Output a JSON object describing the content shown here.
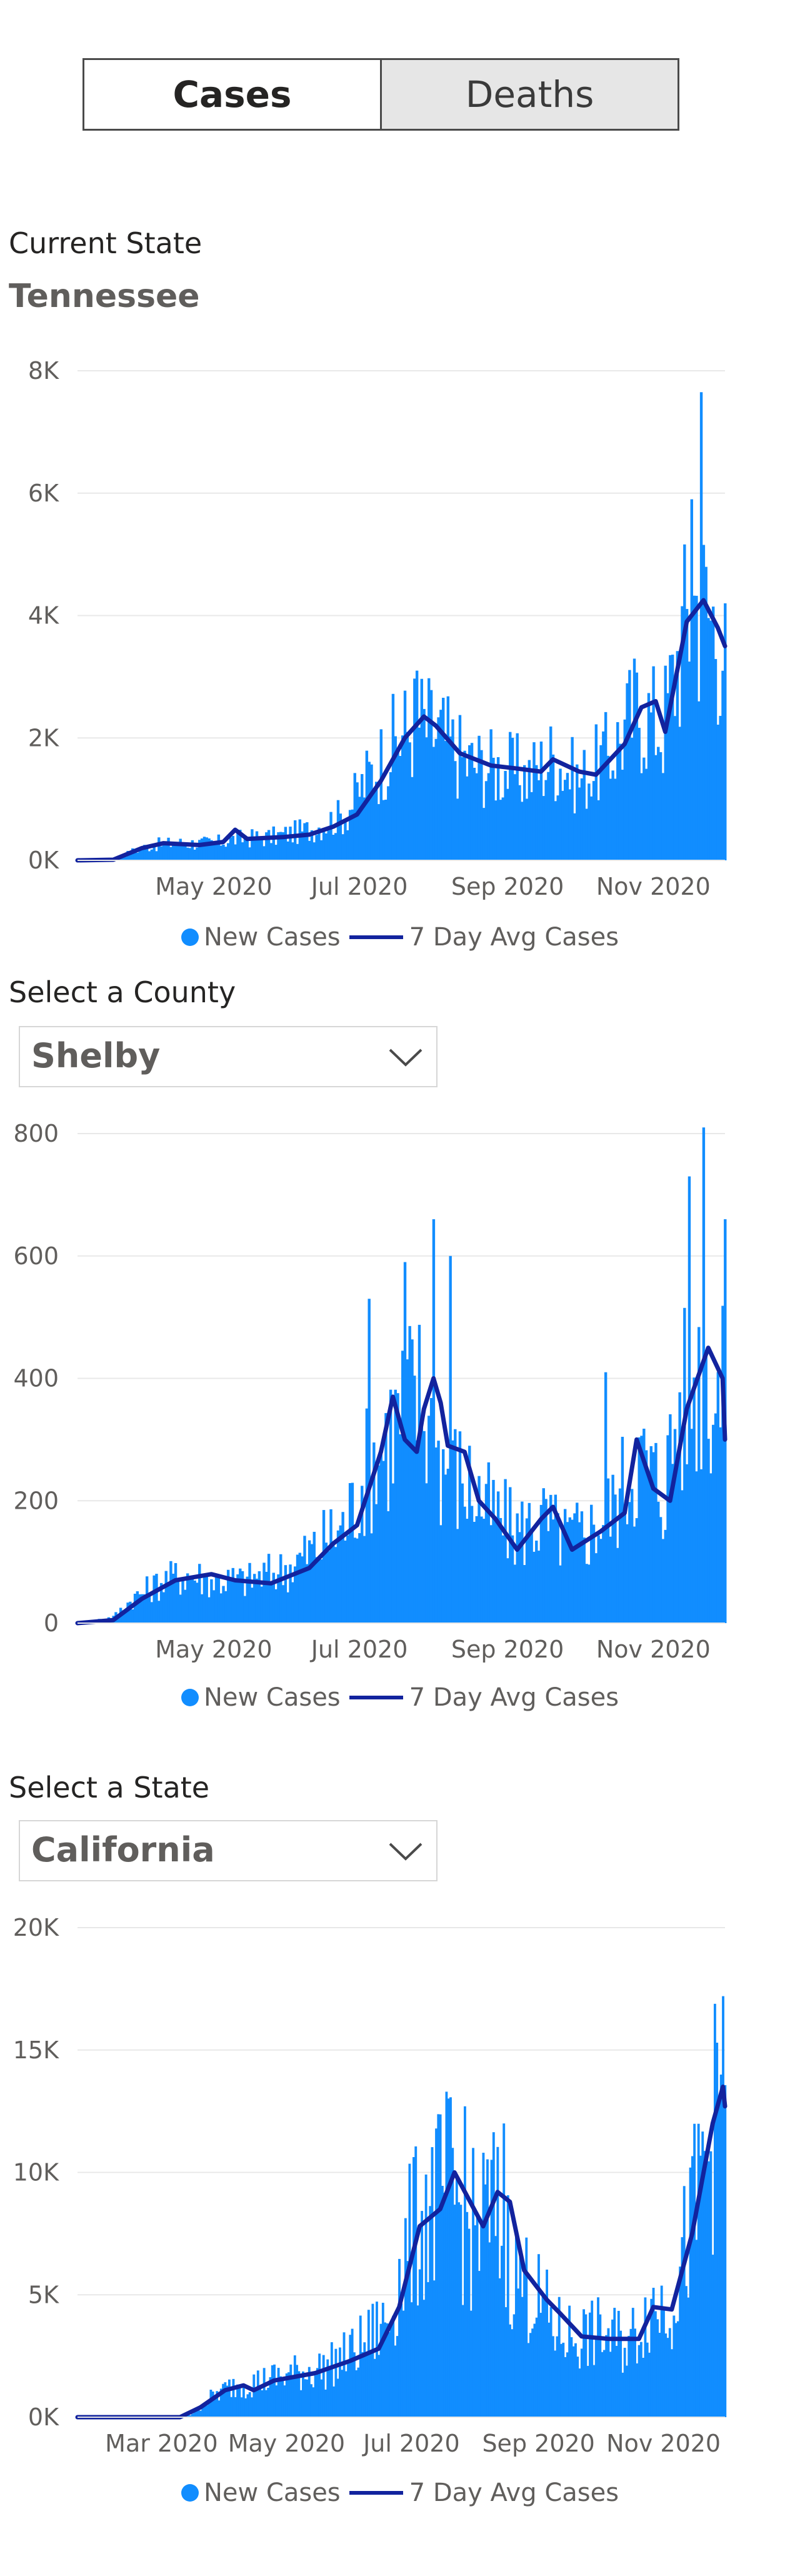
{
  "tabs": {
    "cases": "Cases",
    "deaths": "Deaths"
  },
  "section1": {
    "heading": "Current State",
    "state": "Tennessee"
  },
  "section2": {
    "heading": "Select a County",
    "selected": "Shelby"
  },
  "section3": {
    "heading": "Select a State",
    "selected": "California"
  },
  "legend": {
    "bars": "New Cases",
    "line": "7 Day Avg Cases"
  },
  "colors": {
    "bars": "#118dff",
    "line": "#12239e",
    "grid": "#e8e8e8",
    "tick": "#605e5c"
  },
  "chart_data": [
    {
      "type": "bar",
      "title": "Tennessee",
      "x_range": [
        "2020-03-05",
        "2020-12-01"
      ],
      "x_ticks": [
        "May 2020",
        "Jul 2020",
        "Sep 2020",
        "Nov 2020"
      ],
      "y_ticks": [
        "0K",
        "2K",
        "4K",
        "6K",
        "8K"
      ],
      "ylim": [
        0,
        8000
      ],
      "grid": true,
      "legend_position": "bottom",
      "series": [
        {
          "name": "New Cases",
          "kind": "bar",
          "points": [
            [
              "2020-03-05",
              0
            ],
            [
              "2020-03-20",
              10
            ],
            [
              "2020-03-28",
              150
            ],
            [
              "2020-04-05",
              250
            ],
            [
              "2020-04-15",
              280
            ],
            [
              "2020-05-01",
              280
            ],
            [
              "2020-05-10",
              350
            ],
            [
              "2020-05-25",
              380
            ],
            [
              "2020-06-10",
              500
            ],
            [
              "2020-06-25",
              750
            ],
            [
              "2020-07-05",
              1400
            ],
            [
              "2020-07-15",
              1900
            ],
            [
              "2020-07-25",
              2300
            ],
            [
              "2020-08-05",
              2000
            ],
            [
              "2020-08-15",
              1600
            ],
            [
              "2020-08-30",
              1500
            ],
            [
              "2020-09-10",
              1400
            ],
            [
              "2020-09-20",
              1700
            ],
            [
              "2020-10-01",
              1300
            ],
            [
              "2020-10-15",
              1800
            ],
            [
              "2020-10-25",
              2500
            ],
            [
              "2020-11-05",
              2200
            ],
            [
              "2020-11-12",
              3500
            ],
            [
              "2020-11-18",
              4300
            ],
            [
              "2020-11-25",
              4000
            ],
            [
              "2020-12-01",
              3600
            ]
          ],
          "peaks": [
            [
              "2020-11-21",
              7650
            ],
            [
              "2020-11-17",
              5900
            ],
            [
              "2020-12-01",
              4200
            ],
            [
              "2020-07-25",
              3100
            ]
          ]
        },
        {
          "name": "7 Day Avg Cases",
          "kind": "line",
          "points": [
            [
              "2020-03-05",
              0
            ],
            [
              "2020-03-20",
              10
            ],
            [
              "2020-04-01",
              200
            ],
            [
              "2020-04-10",
              280
            ],
            [
              "2020-04-25",
              250
            ],
            [
              "2020-05-05",
              300
            ],
            [
              "2020-05-10",
              500
            ],
            [
              "2020-05-15",
              350
            ],
            [
              "2020-05-30",
              380
            ],
            [
              "2020-06-10",
              420
            ],
            [
              "2020-06-20",
              550
            ],
            [
              "2020-06-30",
              750
            ],
            [
              "2020-07-10",
              1300
            ],
            [
              "2020-07-20",
              2000
            ],
            [
              "2020-07-28",
              2350
            ],
            [
              "2020-08-02",
              2200
            ],
            [
              "2020-08-12",
              1750
            ],
            [
              "2020-08-25",
              1550
            ],
            [
              "2020-09-05",
              1500
            ],
            [
              "2020-09-15",
              1450
            ],
            [
              "2020-09-20",
              1650
            ],
            [
              "2020-10-01",
              1450
            ],
            [
              "2020-10-08",
              1400
            ],
            [
              "2020-10-20",
              1900
            ],
            [
              "2020-10-27",
              2500
            ],
            [
              "2020-11-02",
              2600
            ],
            [
              "2020-11-06",
              2100
            ],
            [
              "2020-11-15",
              3900
            ],
            [
              "2020-11-22",
              4250
            ],
            [
              "2020-11-28",
              3800
            ],
            [
              "2020-12-01",
              3500
            ]
          ]
        }
      ]
    },
    {
      "type": "bar",
      "title": "Shelby",
      "x_range": [
        "2020-03-05",
        "2020-12-01"
      ],
      "x_ticks": [
        "May 2020",
        "Jul 2020",
        "Sep 2020",
        "Nov 2020"
      ],
      "y_ticks": [
        "0",
        "200",
        "400",
        "600",
        "800"
      ],
      "ylim": [
        0,
        800
      ],
      "grid": true,
      "legend_position": "bottom",
      "series": [
        {
          "name": "New Cases",
          "kind": "bar",
          "points": [
            [
              "2020-03-05",
              0
            ],
            [
              "2020-03-20",
              10
            ],
            [
              "2020-03-28",
              40
            ],
            [
              "2020-04-10",
              70
            ],
            [
              "2020-04-20",
              80
            ],
            [
              "2020-05-01",
              70
            ],
            [
              "2020-05-15",
              70
            ],
            [
              "2020-06-01",
              90
            ],
            [
              "2020-06-15",
              130
            ],
            [
              "2020-06-25",
              160
            ],
            [
              "2020-07-05",
              260
            ],
            [
              "2020-07-15",
              320
            ],
            [
              "2020-07-25",
              380
            ],
            [
              "2020-08-05",
              260
            ],
            [
              "2020-08-15",
              230
            ],
            [
              "2020-08-25",
              180
            ],
            [
              "2020-09-05",
              150
            ],
            [
              "2020-09-15",
              170
            ],
            [
              "2020-09-25",
              140
            ],
            [
              "2020-10-05",
              150
            ],
            [
              "2020-10-15",
              190
            ],
            [
              "2020-10-25",
              270
            ],
            [
              "2020-11-05",
              220
            ],
            [
              "2020-11-12",
              350
            ],
            [
              "2020-11-22",
              430
            ],
            [
              "2020-12-01",
              350
            ]
          ],
          "peaks": [
            [
              "2020-11-22",
              810
            ],
            [
              "2020-11-16",
              730
            ],
            [
              "2020-12-01",
              660
            ],
            [
              "2020-08-01",
              660
            ],
            [
              "2020-08-08",
              600
            ],
            [
              "2020-07-20",
              590
            ],
            [
              "2020-07-05",
              530
            ],
            [
              "2020-10-12",
              410
            ]
          ]
        },
        {
          "name": "7 Day Avg Cases",
          "kind": "line",
          "points": [
            [
              "2020-03-05",
              0
            ],
            [
              "2020-03-20",
              5
            ],
            [
              "2020-04-01",
              40
            ],
            [
              "2020-04-15",
              70
            ],
            [
              "2020-04-30",
              80
            ],
            [
              "2020-05-10",
              70
            ],
            [
              "2020-05-25",
              65
            ],
            [
              "2020-06-10",
              90
            ],
            [
              "2020-06-20",
              130
            ],
            [
              "2020-06-30",
              160
            ],
            [
              "2020-07-10",
              280
            ],
            [
              "2020-07-15",
              370
            ],
            [
              "2020-07-20",
              300
            ],
            [
              "2020-07-25",
              280
            ],
            [
              "2020-07-28",
              350
            ],
            [
              "2020-08-01",
              400
            ],
            [
              "2020-08-04",
              360
            ],
            [
              "2020-08-07",
              290
            ],
            [
              "2020-08-14",
              280
            ],
            [
              "2020-08-20",
              200
            ],
            [
              "2020-08-27",
              170
            ],
            [
              "2020-09-05",
              120
            ],
            [
              "2020-09-15",
              170
            ],
            [
              "2020-09-20",
              190
            ],
            [
              "2020-09-28",
              120
            ],
            [
              "2020-10-10",
              150
            ],
            [
              "2020-10-20",
              180
            ],
            [
              "2020-10-25",
              300
            ],
            [
              "2020-11-01",
              220
            ],
            [
              "2020-11-08",
              200
            ],
            [
              "2020-11-15",
              350
            ],
            [
              "2020-11-24",
              450
            ],
            [
              "2020-11-30",
              400
            ],
            [
              "2020-12-01",
              300
            ]
          ]
        }
      ]
    },
    {
      "type": "bar",
      "title": "California",
      "x_range": [
        "2020-01-20",
        "2020-12-01"
      ],
      "x_ticks": [
        "Mar 2020",
        "May 2020",
        "Jul 2020",
        "Sep 2020",
        "Nov 2020"
      ],
      "y_ticks": [
        "0K",
        "5K",
        "10K",
        "15K",
        "20K"
      ],
      "ylim": [
        0,
        20000
      ],
      "grid": true,
      "legend_position": "bottom",
      "series": [
        {
          "name": "New Cases",
          "kind": "bar",
          "points": [
            [
              "2020-01-20",
              0
            ],
            [
              "2020-03-01",
              0
            ],
            [
              "2020-03-15",
              100
            ],
            [
              "2020-03-25",
              800
            ],
            [
              "2020-04-05",
              1300
            ],
            [
              "2020-04-20",
              1500
            ],
            [
              "2020-05-05",
              1800
            ],
            [
              "2020-05-20",
              2000
            ],
            [
              "2020-06-05",
              2800
            ],
            [
              "2020-06-20",
              4000
            ],
            [
              "2020-07-01",
              7500
            ],
            [
              "2020-07-10",
              8500
            ],
            [
              "2020-07-20",
              9500
            ],
            [
              "2020-07-30",
              7500
            ],
            [
              "2020-08-10",
              8500
            ],
            [
              "2020-08-20",
              6000
            ],
            [
              "2020-08-30",
              5000
            ],
            [
              "2020-09-10",
              3500
            ],
            [
              "2020-09-20",
              3300
            ],
            [
              "2020-10-01",
              3400
            ],
            [
              "2020-10-15",
              3000
            ],
            [
              "2020-10-25",
              4500
            ],
            [
              "2020-11-05",
              4800
            ],
            [
              "2020-11-15",
              8000
            ],
            [
              "2020-11-25",
              12000
            ],
            [
              "2020-12-01",
              12500
            ]
          ],
          "peaks": [
            [
              "2020-11-30",
              17200
            ],
            [
              "2020-11-27",
              15300
            ],
            [
              "2020-07-27",
              12700
            ],
            [
              "2020-08-15",
              12000
            ]
          ]
        },
        {
          "name": "7 Day Avg Cases",
          "kind": "line",
          "points": [
            [
              "2020-01-20",
              0
            ],
            [
              "2020-03-10",
              0
            ],
            [
              "2020-03-20",
              400
            ],
            [
              "2020-04-01",
              1100
            ],
            [
              "2020-04-10",
              1300
            ],
            [
              "2020-04-15",
              1100
            ],
            [
              "2020-04-25",
              1500
            ],
            [
              "2020-05-15",
              1800
            ],
            [
              "2020-06-01",
              2300
            ],
            [
              "2020-06-15",
              2800
            ],
            [
              "2020-06-25",
              4500
            ],
            [
              "2020-07-05",
              7800
            ],
            [
              "2020-07-15",
              8500
            ],
            [
              "2020-07-22",
              10000
            ],
            [
              "2020-08-05",
              7800
            ],
            [
              "2020-08-12",
              9200
            ],
            [
              "2020-08-18",
              8800
            ],
            [
              "2020-08-25",
              6000
            ],
            [
              "2020-09-05",
              4800
            ],
            [
              "2020-09-12",
              4200
            ],
            [
              "2020-09-22",
              3300
            ],
            [
              "2020-10-05",
              3200
            ],
            [
              "2020-10-20",
              3200
            ],
            [
              "2020-10-27",
              4500
            ],
            [
              "2020-11-05",
              4400
            ],
            [
              "2020-11-15",
              7500
            ],
            [
              "2020-11-25",
              12000
            ],
            [
              "2020-11-30",
              13500
            ],
            [
              "2020-12-01",
              12700
            ]
          ]
        }
      ]
    }
  ]
}
